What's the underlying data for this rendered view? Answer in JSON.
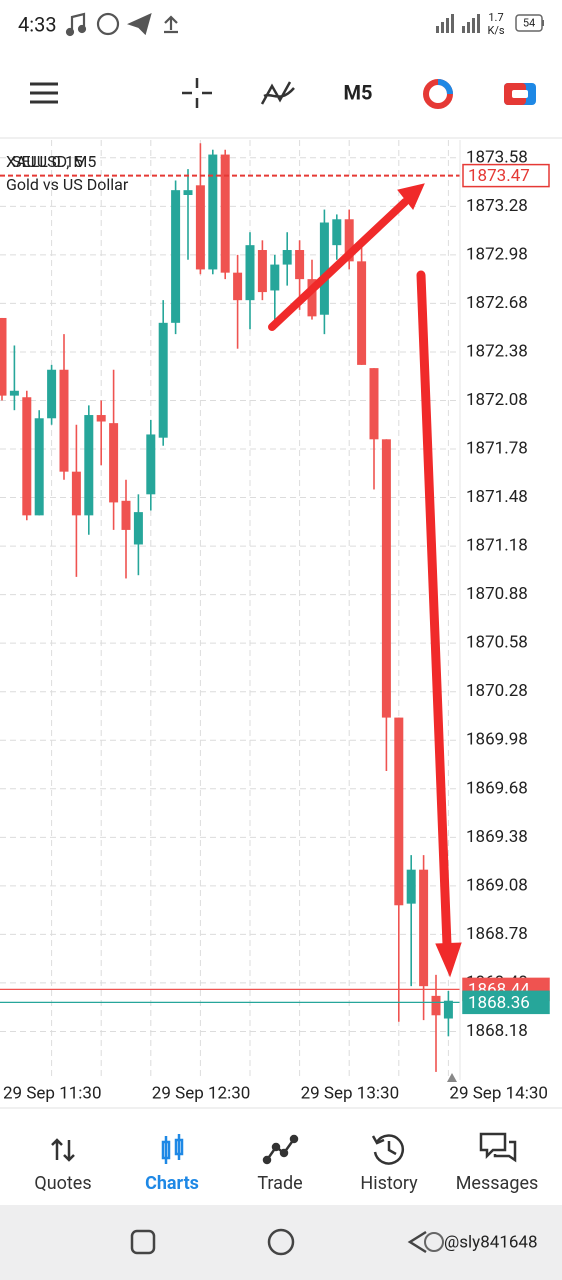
{
  "status_bar": {
    "time": "4:33",
    "speed": "1.7",
    "speed_unit": "K/s",
    "battery": "54"
  },
  "toolbar": {
    "timeframe": "M5"
  },
  "chart_data": {
    "type": "candlestick",
    "symbol": "XAUUSD, M5",
    "order": "SELL 0.15",
    "description": "Gold vs US Dollar",
    "categories": [
      "29 Sep 11:30",
      null,
      null,
      null,
      null,
      null,
      null,
      null,
      null,
      null,
      null,
      null,
      "29 Sep 12:30",
      null,
      null,
      null,
      null,
      null,
      null,
      null,
      null,
      null,
      null,
      null,
      "29 Sep 13:30",
      null,
      null,
      null,
      null,
      null,
      null,
      null,
      null,
      null,
      null,
      null,
      "29 Sep 14:30"
    ],
    "open": [
      1872.59,
      1872.11,
      1872.1,
      1871.37,
      1871.97,
      1872.27,
      1871.64,
      1871.37,
      1871.99,
      1871.94,
      1871.46,
      1871.19,
      1871.5,
      1871.85,
      1872.56,
      1873.35,
      1873.41,
      1872.89,
      1873.6,
      1872.87,
      1872.7,
      1873.01,
      1872.76,
      1872.92,
      1873.01,
      1872.83,
      1872.61,
      1873.04,
      1873.2,
      1872.94,
      1872.28,
      1871.84,
      1870.12,
      1868.97,
      1869.18,
      1868.4,
      1868.26
    ],
    "high": [
      1872.59,
      1872.42,
      1872.14,
      1872.02,
      1872.3,
      1872.49,
      1871.93,
      1872.05,
      1872.08,
      1872.27,
      1871.59,
      1871.5,
      1871.96,
      1872.7,
      1873.44,
      1873.51,
      1873.67,
      1873.63,
      1873.63,
      1872.98,
      1873.12,
      1873.07,
      1872.98,
      1873.12,
      1873.07,
      1872.95,
      1873.26,
      1873.23,
      1873.26,
      1873.04,
      1872.28,
      1871.84,
      1870.12,
      1869.27,
      1869.27,
      1868.53,
      1868.43
    ],
    "low": [
      1872.08,
      1872.02,
      1871.34,
      1871.37,
      1871.93,
      1871.59,
      1870.99,
      1871.25,
      1871.68,
      1871.28,
      1870.98,
      1871.0,
      1871.4,
      1871.8,
      1872.49,
      1872.95,
      1872.86,
      1872.86,
      1872.83,
      1872.4,
      1872.52,
      1872.7,
      1872.52,
      1872.79,
      1872.64,
      1872.58,
      1872.49,
      1872.95,
      1872.89,
      1872.3,
      1871.53,
      1869.79,
      1868.24,
      1868.46,
      1868.25,
      1867.93,
      1868.15
    ],
    "close": [
      1872.11,
      1872.14,
      1871.37,
      1871.97,
      1872.27,
      1871.64,
      1871.37,
      1871.99,
      1871.95,
      1871.45,
      1871.28,
      1871.39,
      1871.87,
      1872.56,
      1873.38,
      1873.38,
      1872.89,
      1873.6,
      1872.87,
      1872.7,
      1873.04,
      1872.75,
      1872.92,
      1873.01,
      1872.83,
      1872.6,
      1873.18,
      1873.2,
      1872.94,
      1872.3,
      1871.84,
      1870.12,
      1868.96,
      1869.18,
      1868.46,
      1868.28,
      1868.37
    ],
    "up_color": "#26a69a",
    "down_color": "#ef5350",
    "ylim": [
      1867.88,
      1873.69
    ],
    "yticks": [
      1873.58,
      1873.28,
      1872.98,
      1872.68,
      1872.38,
      1872.08,
      1871.78,
      1871.48,
      1871.18,
      1870.88,
      1870.58,
      1870.28,
      1869.98,
      1869.68,
      1869.38,
      1869.08,
      1868.78,
      1868.48,
      1868.18
    ],
    "grid": true,
    "price_lines": [
      {
        "value": 1873.47,
        "color": "#e53935",
        "style": "dashed",
        "label_style": "outline"
      },
      {
        "value": 1868.44,
        "color": "#ef5350",
        "style": "solid",
        "label_style": "fill"
      },
      {
        "value": 1868.36,
        "color": "#26a69a",
        "style": "solid",
        "label_style": "fill"
      }
    ]
  },
  "nav": {
    "items": [
      {
        "label": "Quotes",
        "active": false
      },
      {
        "label": "Charts",
        "active": true
      },
      {
        "label": "Trade",
        "active": false
      },
      {
        "label": "History",
        "active": false
      },
      {
        "label": "Messages",
        "active": false
      }
    ]
  },
  "watermark": "@sly841648"
}
